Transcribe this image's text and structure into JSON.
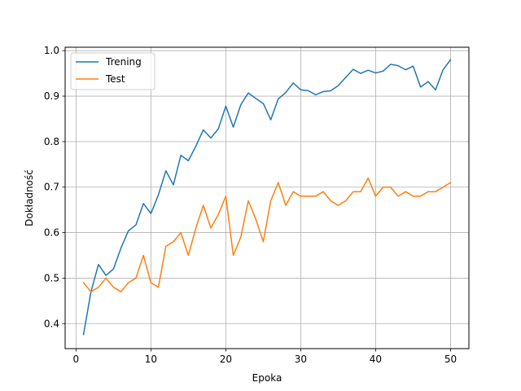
{
  "chart_data": {
    "type": "line",
    "title": "",
    "xlabel": "Epoka",
    "ylabel": "Dokładność",
    "xlim": [
      -1.45,
      52.45
    ],
    "ylim": [
      0.345,
      1.0075
    ],
    "xticks": [
      0,
      10,
      20,
      30,
      40,
      50
    ],
    "yticks": [
      0.4,
      0.5,
      0.6,
      0.7,
      0.8,
      0.9,
      1.0
    ],
    "ytick_labels": [
      "0.4",
      "0.5",
      "0.6",
      "0.7",
      "0.8",
      "0.9",
      "1.0"
    ],
    "grid": true,
    "legend": "top-left",
    "x": [
      1,
      2,
      3,
      4,
      5,
      6,
      7,
      8,
      9,
      10,
      11,
      12,
      13,
      14,
      15,
      16,
      17,
      18,
      19,
      20,
      21,
      22,
      23,
      24,
      25,
      26,
      27,
      28,
      29,
      30,
      31,
      32,
      33,
      34,
      35,
      36,
      37,
      38,
      39,
      40,
      41,
      42,
      43,
      44,
      45,
      46,
      47,
      48,
      49,
      50
    ],
    "series": [
      {
        "name": "Trening",
        "color": "#1f77b4",
        "values": [
          0.376,
          0.47,
          0.53,
          0.506,
          0.52,
          0.566,
          0.604,
          0.617,
          0.664,
          0.642,
          0.683,
          0.736,
          0.705,
          0.77,
          0.758,
          0.79,
          0.826,
          0.808,
          0.828,
          0.878,
          0.832,
          0.881,
          0.907,
          0.895,
          0.884,
          0.848,
          0.894,
          0.908,
          0.929,
          0.914,
          0.912,
          0.903,
          0.91,
          0.912,
          0.923,
          0.941,
          0.959,
          0.95,
          0.957,
          0.951,
          0.955,
          0.97,
          0.967,
          0.958,
          0.966,
          0.92,
          0.932,
          0.914,
          0.958,
          0.98
        ]
      },
      {
        "name": "Test",
        "color": "#ff7f0e",
        "values": [
          0.49,
          0.47,
          0.48,
          0.5,
          0.48,
          0.47,
          0.49,
          0.5,
          0.55,
          0.49,
          0.48,
          0.57,
          0.58,
          0.6,
          0.55,
          0.61,
          0.66,
          0.61,
          0.64,
          0.68,
          0.55,
          0.59,
          0.67,
          0.63,
          0.58,
          0.67,
          0.71,
          0.66,
          0.69,
          0.68,
          0.68,
          0.68,
          0.69,
          0.67,
          0.66,
          0.67,
          0.69,
          0.69,
          0.72,
          0.68,
          0.7,
          0.7,
          0.68,
          0.69,
          0.68,
          0.68,
          0.69,
          0.69,
          0.7,
          0.71
        ]
      }
    ]
  }
}
